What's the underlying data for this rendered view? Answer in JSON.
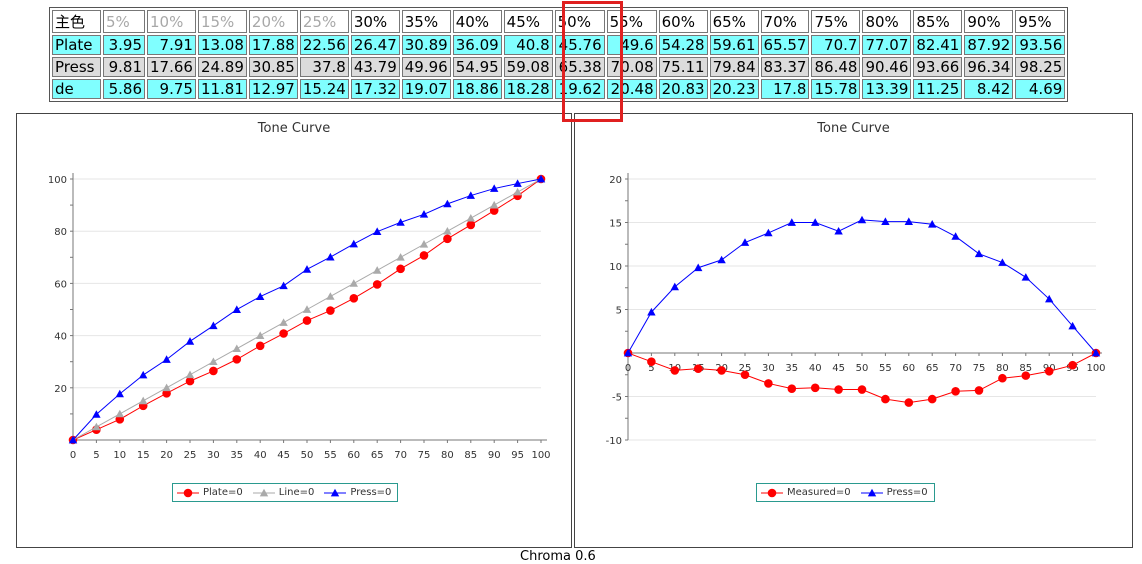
{
  "table": {
    "headers": [
      "主色",
      "5%",
      "10%",
      "15%",
      "20%",
      "25%",
      "30%",
      "35%",
      "40%",
      "45%",
      "50%",
      "55%",
      "60%",
      "65%",
      "70%",
      "75%",
      "80%",
      "85%",
      "90%",
      "95%"
    ],
    "rows": [
      {
        "label": "Plate",
        "style": "cyan",
        "values": [
          "3.95",
          "7.91",
          "13.08",
          "17.88",
          "22.56",
          "26.47",
          "30.89",
          "36.09",
          "40.8",
          "45.76",
          "49.6",
          "54.28",
          "59.61",
          "65.57",
          "70.7",
          "77.07",
          "82.41",
          "87.92",
          "93.56"
        ]
      },
      {
        "label": "Press",
        "style": "gray",
        "values": [
          "9.81",
          "17.66",
          "24.89",
          "30.85",
          "37.8",
          "43.79",
          "49.96",
          "54.95",
          "59.08",
          "65.38",
          "70.08",
          "75.11",
          "79.84",
          "83.37",
          "86.48",
          "90.46",
          "93.66",
          "96.34",
          "98.25"
        ]
      },
      {
        "label": "de",
        "style": "cyan",
        "values": [
          "5.86",
          "9.75",
          "11.81",
          "12.97",
          "15.24",
          "17.32",
          "19.07",
          "18.86",
          "18.28",
          "19.62",
          "20.48",
          "20.83",
          "20.23",
          "17.8",
          "15.78",
          "13.39",
          "11.25",
          "8.42",
          "4.69"
        ]
      }
    ]
  },
  "footer_caption": "Chroma 0.6",
  "chart_data": [
    {
      "type": "line",
      "title": "Tone Curve",
      "x": [
        0,
        5,
        10,
        15,
        20,
        25,
        30,
        35,
        40,
        45,
        50,
        55,
        60,
        65,
        70,
        75,
        80,
        85,
        90,
        95,
        100
      ],
      "xlim": [
        0,
        100
      ],
      "ylim": [
        0,
        100
      ],
      "yticks": [
        20,
        40,
        60,
        80,
        100
      ],
      "grid": true,
      "legend_position": "bottom",
      "series": [
        {
          "name": "Plate=0",
          "color": "#ff0000",
          "marker": "circle",
          "values": [
            0,
            3.95,
            7.91,
            13.08,
            17.88,
            22.56,
            26.47,
            30.89,
            36.09,
            40.8,
            45.76,
            49.6,
            54.28,
            59.61,
            65.57,
            70.7,
            77.07,
            82.41,
            87.92,
            93.56,
            100
          ]
        },
        {
          "name": "Line=0",
          "color": "#aaaaaa",
          "marker": "triangle",
          "values": [
            0,
            5,
            10,
            15,
            20,
            25,
            30,
            35,
            40,
            45,
            50,
            55,
            60,
            65,
            70,
            75,
            80,
            85,
            90,
            95,
            100
          ]
        },
        {
          "name": "Press=0",
          "color": "#0000ff",
          "marker": "triangle",
          "values": [
            0,
            9.81,
            17.66,
            24.89,
            30.85,
            37.8,
            43.79,
            49.96,
            54.95,
            59.08,
            65.38,
            70.08,
            75.11,
            79.84,
            83.37,
            86.48,
            90.46,
            93.66,
            96.34,
            98.25,
            100
          ]
        }
      ]
    },
    {
      "type": "line",
      "title": "Tone Curve",
      "x": [
        0,
        5,
        10,
        15,
        20,
        25,
        30,
        35,
        40,
        45,
        50,
        55,
        60,
        65,
        70,
        75,
        80,
        85,
        90,
        95,
        100
      ],
      "xlim": [
        0,
        100
      ],
      "ylim": [
        -10,
        20
      ],
      "yticks": [
        -10,
        -5,
        5,
        10,
        15,
        20
      ],
      "grid": true,
      "legend_position": "bottom",
      "series": [
        {
          "name": "Measured=0",
          "color": "#ff0000",
          "marker": "circle",
          "values": [
            0,
            -1.0,
            -2.0,
            -1.8,
            -2.0,
            -2.5,
            -3.5,
            -4.1,
            -4.0,
            -4.2,
            -4.2,
            -5.3,
            -5.7,
            -5.3,
            -4.4,
            -4.3,
            -2.9,
            -2.6,
            -2.1,
            -1.4,
            0
          ]
        },
        {
          "name": "Press=0",
          "color": "#0000ff",
          "marker": "triangle",
          "values": [
            0,
            4.7,
            7.6,
            9.8,
            10.7,
            12.7,
            13.8,
            15.0,
            15.0,
            14.0,
            15.3,
            15.1,
            15.1,
            14.8,
            13.4,
            11.4,
            10.4,
            8.7,
            6.2,
            3.1,
            0
          ]
        }
      ]
    }
  ]
}
